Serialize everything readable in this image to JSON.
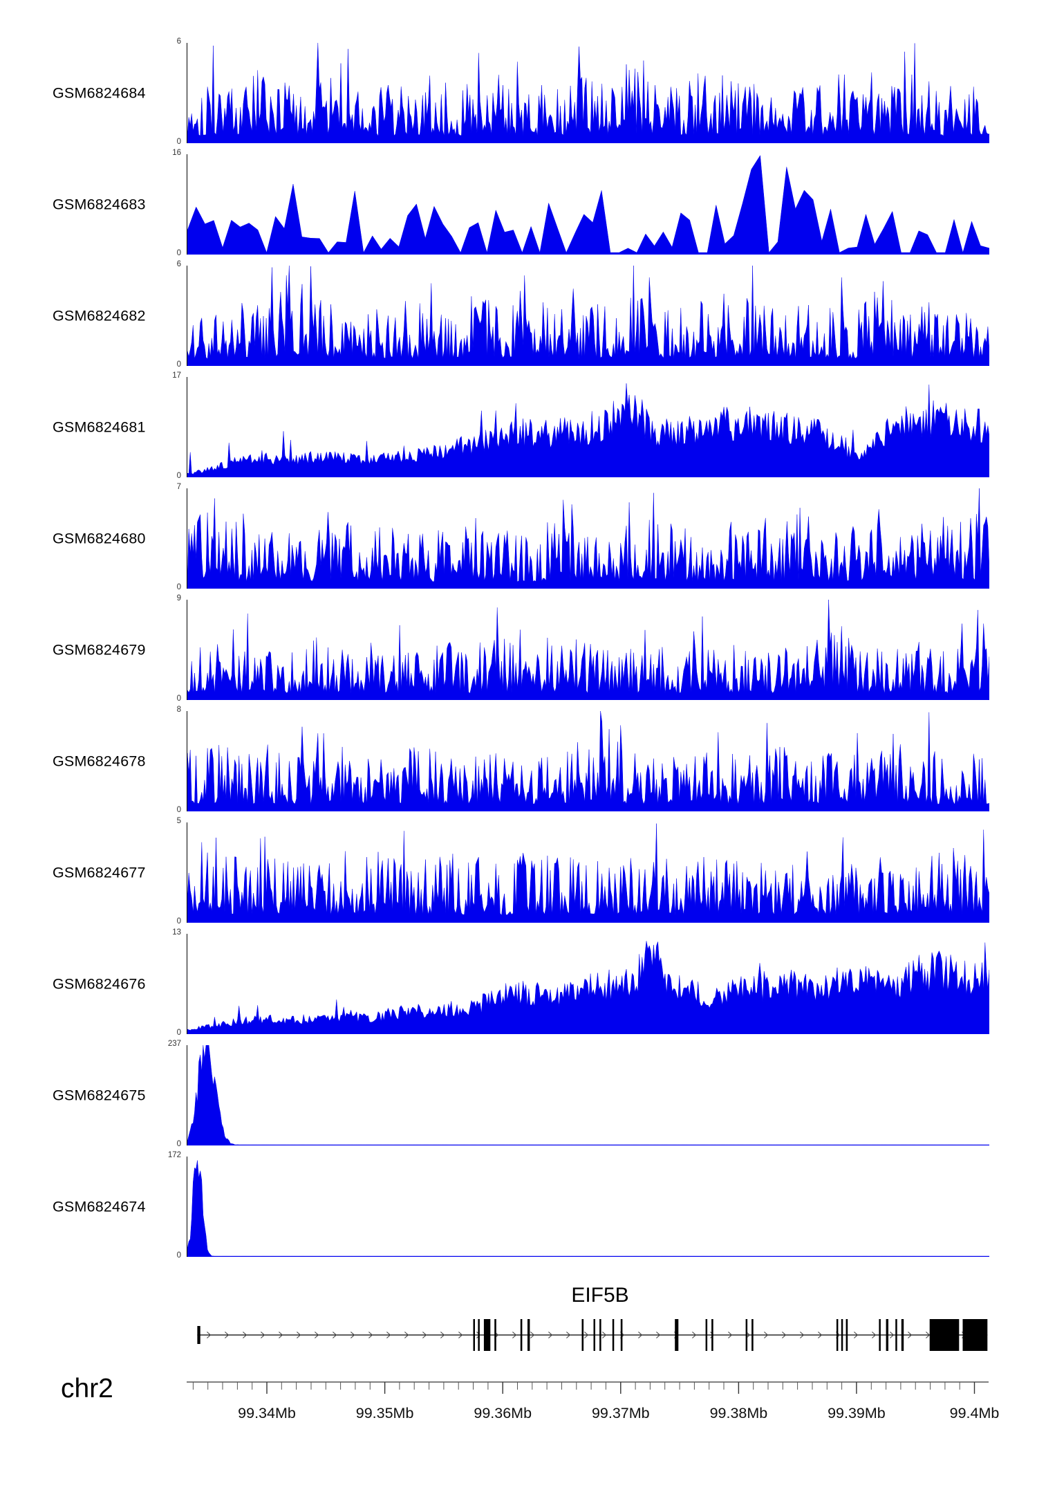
{
  "chart_data": {
    "type": "area",
    "description": "Genome browser read-coverage tracks over the EIF5B locus",
    "signal_color": "#0000EE",
    "x_domain_mb": [
      99.3332,
      99.4012
    ],
    "x_axis": {
      "chrom": "chr2",
      "unit": "Mb",
      "minor_tick_step_mb": 0.00125,
      "major_ticks": [
        {
          "mb": 99.34,
          "label": "99.34Mb"
        },
        {
          "mb": 99.35,
          "label": "99.35Mb"
        },
        {
          "mb": 99.36,
          "label": "99.36Mb"
        },
        {
          "mb": 99.37,
          "label": "99.37Mb"
        },
        {
          "mb": 99.38,
          "label": "99.38Mb"
        },
        {
          "mb": 99.39,
          "label": "99.39Mb"
        },
        {
          "mb": 99.4,
          "label": "99.4Mb"
        }
      ]
    },
    "tracks": [
      {
        "name": "GSM6824684",
        "ymin": 0,
        "ymax": 6,
        "style": "dense",
        "seed": 101,
        "env": [
          0.55,
          0.7,
          0.6,
          0.75,
          0.55,
          0.65,
          0.8,
          0.6,
          0.55,
          0.7,
          0.6,
          0.65,
          0.75,
          0.55,
          0.6,
          0.7,
          0.65,
          0.8,
          0.6,
          0.55,
          0.75,
          0.65,
          0.6,
          0.7,
          0.55,
          0.65,
          0.75,
          0.6,
          0.7,
          0.55,
          0.65,
          0.7
        ]
      },
      {
        "name": "GSM6824683",
        "ymin": 0,
        "ymax": 16,
        "style": "coarse",
        "seed": 102,
        "env": [
          0.5,
          0.45,
          0.35,
          0.5,
          0.8,
          0.6,
          0.9,
          0.5,
          0.4,
          0.55,
          0.45,
          0.6,
          0.5,
          0.4,
          1.0,
          0.6,
          0.75,
          0.5,
          0.45,
          0.6,
          0.5,
          0.55,
          1.0,
          0.95,
          0.8,
          0.6,
          0.5,
          0.45,
          0.55,
          0.5,
          0.6,
          0.5
        ]
      },
      {
        "name": "GSM6824682",
        "ymin": 0,
        "ymax": 6,
        "style": "dense",
        "seed": 103,
        "env": [
          0.6,
          0.55,
          0.65,
          0.6,
          0.95,
          0.7,
          0.6,
          0.55,
          0.65,
          0.6,
          0.55,
          0.7,
          0.6,
          0.9,
          0.65,
          0.55,
          0.6,
          0.9,
          0.6,
          0.55,
          0.65,
          0.6,
          0.7,
          0.55,
          0.6,
          0.65,
          0.55,
          0.85,
          0.6,
          0.65,
          0.55,
          0.6
        ]
      },
      {
        "name": "GSM6824681",
        "ymin": 0,
        "ymax": 17,
        "style": "filled",
        "seed": 104,
        "env": [
          0.04,
          0.12,
          0.22,
          0.25,
          0.22,
          0.28,
          0.25,
          0.22,
          0.28,
          0.3,
          0.35,
          0.45,
          0.55,
          0.6,
          0.58,
          0.62,
          0.65,
          1.0,
          0.62,
          0.58,
          0.68,
          0.72,
          0.7,
          0.66,
          0.62,
          0.5,
          0.25,
          0.6,
          0.75,
          0.78,
          0.72,
          0.66
        ]
      },
      {
        "name": "GSM6824680",
        "ymin": 0,
        "ymax": 7,
        "style": "dense",
        "seed": 105,
        "env": [
          0.6,
          1.0,
          0.6,
          0.55,
          0.65,
          0.6,
          0.7,
          0.55,
          0.65,
          0.6,
          0.55,
          0.7,
          0.6,
          0.55,
          0.65,
          0.6,
          0.55,
          0.65,
          0.7,
          0.6,
          0.55,
          0.65,
          0.6,
          0.55,
          0.7,
          0.6,
          0.65,
          0.9,
          0.6,
          1.0,
          0.65,
          0.8
        ]
      },
      {
        "name": "GSM6824679",
        "ymin": 0,
        "ymax": 9,
        "style": "dense",
        "seed": 106,
        "env": [
          0.5,
          0.55,
          0.6,
          0.5,
          0.55,
          0.65,
          0.5,
          0.6,
          0.55,
          0.5,
          0.6,
          0.55,
          0.65,
          0.5,
          0.55,
          0.6,
          0.5,
          0.55,
          0.6,
          0.5,
          0.55,
          0.6,
          0.5,
          0.55,
          0.6,
          1.0,
          0.55,
          0.5,
          0.6,
          0.55,
          0.5,
          0.9
        ]
      },
      {
        "name": "GSM6824678",
        "ymin": 0,
        "ymax": 8,
        "style": "dense",
        "seed": 107,
        "env": [
          0.6,
          0.7,
          0.55,
          0.65,
          0.6,
          0.55,
          0.65,
          0.6,
          0.55,
          0.65,
          0.6,
          0.55,
          0.65,
          0.6,
          0.55,
          0.65,
          1.0,
          0.6,
          0.55,
          0.65,
          0.6,
          0.55,
          0.6,
          0.65,
          0.55,
          0.6,
          0.8,
          0.6,
          0.75,
          0.6,
          0.55,
          0.6
        ]
      },
      {
        "name": "GSM6824677",
        "ymin": 0,
        "ymax": 5,
        "style": "dense",
        "seed": 108,
        "env": [
          0.7,
          0.95,
          0.65,
          0.6,
          0.7,
          0.65,
          0.6,
          0.7,
          0.65,
          0.6,
          0.7,
          0.65,
          0.6,
          0.7,
          0.65,
          0.7,
          0.6,
          0.65,
          0.7,
          0.6,
          0.65,
          0.7,
          0.65,
          0.6,
          0.7,
          0.65,
          0.6,
          0.7,
          0.65,
          1.0,
          0.65,
          0.7
        ]
      },
      {
        "name": "GSM6824676",
        "ymin": 0,
        "ymax": 13,
        "style": "filled",
        "seed": 109,
        "env": [
          0.05,
          0.12,
          0.18,
          0.2,
          0.18,
          0.22,
          0.25,
          0.22,
          0.28,
          0.3,
          0.32,
          0.38,
          0.45,
          0.55,
          0.5,
          0.6,
          0.65,
          0.7,
          1.0,
          0.6,
          0.5,
          0.55,
          0.62,
          0.68,
          0.6,
          0.65,
          0.72,
          0.6,
          0.78,
          0.85,
          0.75,
          0.7
        ]
      },
      {
        "name": "GSM6824675",
        "ymin": 0,
        "ymax": 237,
        "style": "quiet",
        "seed": 110,
        "base": 0.005,
        "peaks": [
          {
            "t": 0.022,
            "h": 1.0,
            "w": 0.009
          },
          {
            "t": 0.036,
            "h": 0.22,
            "w": 0.008
          }
        ]
      },
      {
        "name": "GSM6824674",
        "ymin": 0,
        "ymax": 172,
        "style": "quiet",
        "seed": 111,
        "base": 0.004,
        "peaks": [
          {
            "t": 0.013,
            "h": 1.0,
            "w": 0.0055
          }
        ]
      }
    ],
    "gene": {
      "name": "EIF5B",
      "strand": "+",
      "span_mb": [
        99.3341,
        99.4011
      ],
      "exons": [
        {
          "mb": 99.3341,
          "w": 0.00025,
          "k": "start"
        },
        {
          "mb": 99.3575,
          "w": 0.00012,
          "k": "cds"
        },
        {
          "mb": 99.3579,
          "w": 0.00012,
          "k": "cds"
        },
        {
          "mb": 99.3584,
          "w": 0.00055,
          "k": "cds"
        },
        {
          "mb": 99.3593,
          "w": 0.00015,
          "k": "cds"
        },
        {
          "mb": 99.3615,
          "w": 0.00015,
          "k": "cds"
        },
        {
          "mb": 99.3621,
          "w": 0.0002,
          "k": "cds"
        },
        {
          "mb": 99.3667,
          "w": 0.00015,
          "k": "cds"
        },
        {
          "mb": 99.3677,
          "w": 0.00012,
          "k": "cds"
        },
        {
          "mb": 99.3682,
          "w": 0.00012,
          "k": "cds"
        },
        {
          "mb": 99.3693,
          "w": 0.0001,
          "k": "cds"
        },
        {
          "mb": 99.37,
          "w": 0.00015,
          "k": "cds"
        },
        {
          "mb": 99.3746,
          "w": 0.0003,
          "k": "cds"
        },
        {
          "mb": 99.3772,
          "w": 0.00012,
          "k": "cds"
        },
        {
          "mb": 99.3777,
          "w": 0.00015,
          "k": "cds"
        },
        {
          "mb": 99.3806,
          "w": 0.00012,
          "k": "cds"
        },
        {
          "mb": 99.3811,
          "w": 0.00015,
          "k": "cds"
        },
        {
          "mb": 99.3883,
          "w": 0.00012,
          "k": "cds"
        },
        {
          "mb": 99.3887,
          "w": 0.00012,
          "k": "cds"
        },
        {
          "mb": 99.3891,
          "w": 0.00015,
          "k": "cds"
        },
        {
          "mb": 99.3919,
          "w": 0.00012,
          "k": "cds"
        },
        {
          "mb": 99.3925,
          "w": 0.0002,
          "k": "cds"
        },
        {
          "mb": 99.3933,
          "w": 0.00012,
          "k": "cds"
        },
        {
          "mb": 99.3938,
          "w": 0.0002,
          "k": "cds"
        },
        {
          "mb": 99.3962,
          "w": 0.0025,
          "k": "end"
        },
        {
          "mb": 99.399,
          "w": 0.0021,
          "k": "end"
        }
      ]
    }
  }
}
